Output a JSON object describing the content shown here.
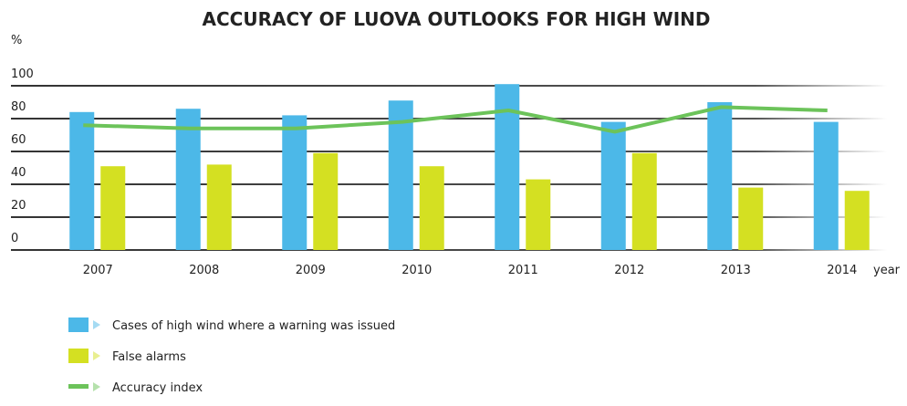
{
  "chart_data": {
    "type": "bar",
    "title": "ACCURACY OF LUOVA OUTLOOKS FOR HIGH WIND",
    "y_label": "%",
    "x_label": "year",
    "categories": [
      "2007",
      "2008",
      "2009",
      "2010",
      "2011",
      "2012",
      "2013",
      "2014"
    ],
    "series": [
      {
        "name": "Cases of high wind where a warning was issued",
        "color": "#4cb8e8",
        "type": "bar",
        "values": [
          84,
          86,
          82,
          91,
          101,
          78,
          90,
          78
        ]
      },
      {
        "name": "False alarms",
        "color": "#d4e022",
        "type": "bar",
        "values": [
          51,
          52,
          59,
          51,
          43,
          59,
          38,
          36
        ]
      },
      {
        "name": "Accuracy index",
        "color": "#6cc35a",
        "type": "line",
        "values": [
          76,
          74,
          74,
          78,
          85,
          72,
          87,
          85
        ]
      }
    ],
    "ylim": [
      0,
      100
    ],
    "yticks": [
      0,
      20,
      40,
      60,
      80,
      100
    ],
    "grid": true
  }
}
